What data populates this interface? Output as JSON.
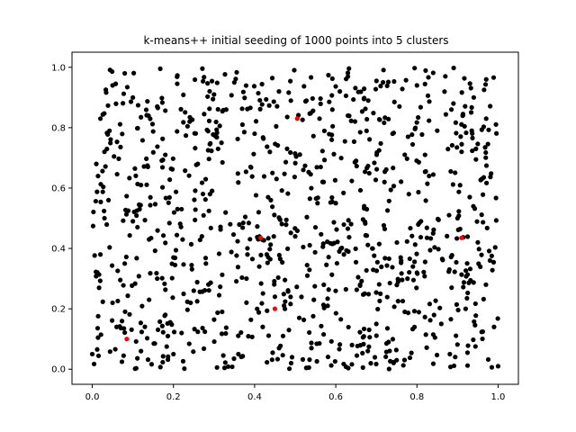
{
  "chart_data": {
    "type": "scatter",
    "title": "k-means++ initial seeding of 1000 points into 5 clusters",
    "xlabel": "",
    "ylabel": "",
    "xlim": [
      -0.05,
      1.05
    ],
    "ylim": [
      -0.05,
      1.05
    ],
    "xticks": [
      "0.0",
      "0.2",
      "0.4",
      "0.6",
      "0.8",
      "1.0"
    ],
    "yticks": [
      "0.0",
      "0.2",
      "0.4",
      "0.6",
      "0.8",
      "1.0"
    ],
    "grid": false,
    "series": [
      {
        "color": "#000000",
        "count": 1000,
        "points": [
          [
            0.0,
            0.05
          ],
          [
            0.05,
            0.22
          ],
          [
            0.02,
            0.38
          ],
          [
            0.03,
            0.72
          ],
          [
            0.05,
            0.94
          ],
          [
            0.08,
            0.98
          ],
          [
            0.1,
            0.9
          ],
          [
            0.12,
            0.61
          ],
          [
            0.14,
            0.43
          ],
          [
            0.16,
            0.3
          ],
          [
            0.18,
            0.18
          ],
          [
            0.2,
            0.05
          ],
          [
            0.22,
            0.12
          ],
          [
            0.25,
            0.26
          ],
          [
            0.27,
            0.44
          ],
          [
            0.29,
            0.58
          ],
          [
            0.31,
            0.73
          ],
          [
            0.33,
            0.86
          ],
          [
            0.35,
            0.95
          ],
          [
            0.37,
            0.81
          ],
          [
            0.39,
            0.67
          ],
          [
            0.41,
            0.52
          ],
          [
            0.43,
            0.38
          ],
          [
            0.45,
            0.24
          ],
          [
            0.47,
            0.11
          ],
          [
            0.49,
            0.02
          ],
          [
            0.51,
            0.17
          ],
          [
            0.53,
            0.31
          ],
          [
            0.55,
            0.47
          ],
          [
            0.57,
            0.62
          ],
          [
            0.59,
            0.76
          ],
          [
            0.61,
            0.92
          ],
          [
            0.63,
            0.84
          ],
          [
            0.65,
            0.69
          ],
          [
            0.67,
            0.54
          ],
          [
            0.69,
            0.4
          ],
          [
            0.71,
            0.25
          ],
          [
            0.73,
            0.09
          ],
          [
            0.75,
            0.03
          ],
          [
            0.77,
            0.19
          ],
          [
            0.79,
            0.34
          ],
          [
            0.81,
            0.49
          ],
          [
            0.83,
            0.64
          ],
          [
            0.85,
            0.79
          ],
          [
            0.87,
            0.97
          ],
          [
            0.89,
            0.88
          ],
          [
            0.91,
            0.72
          ],
          [
            0.93,
            0.57
          ],
          [
            0.95,
            0.42
          ],
          [
            0.97,
            0.28
          ],
          [
            0.99,
            0.14
          ],
          [
            1.0,
            0.01
          ],
          [
            0.98,
            0.36
          ],
          [
            0.96,
            0.63
          ],
          [
            0.94,
            0.9
          ],
          [
            0.92,
            0.2
          ],
          [
            0.9,
            0.5
          ],
          [
            0.88,
            0.33
          ],
          [
            0.86,
            0.15
          ],
          [
            0.84,
            0.45
          ],
          [
            0.82,
            0.71
          ],
          [
            0.8,
            0.94
          ],
          [
            0.78,
            0.58
          ],
          [
            0.76,
            0.37
          ],
          [
            0.74,
            0.78
          ],
          [
            0.72,
            0.62
          ],
          [
            0.7,
            0.15
          ],
          [
            0.68,
            0.89
          ],
          [
            0.66,
            0.28
          ],
          [
            0.64,
            0.08
          ],
          [
            0.62,
            0.38
          ],
          [
            0.6,
            0.55
          ],
          [
            0.58,
            0.21
          ],
          [
            0.56,
            0.83
          ],
          [
            0.54,
            0.07
          ],
          [
            0.52,
            0.66
          ],
          [
            0.5,
            0.44
          ],
          [
            0.48,
            0.73
          ],
          [
            0.46,
            0.92
          ],
          [
            0.44,
            0.56
          ],
          [
            0.42,
            0.14
          ],
          [
            0.4,
            0.78
          ],
          [
            0.38,
            0.3
          ],
          [
            0.36,
            0.05
          ],
          [
            0.34,
            0.48
          ],
          [
            0.32,
            0.19
          ],
          [
            0.3,
            0.91
          ],
          [
            0.28,
            0.35
          ],
          [
            0.26,
            0.68
          ],
          [
            0.24,
            0.82
          ],
          [
            0.22,
            0.53
          ],
          [
            0.2,
            0.37
          ],
          [
            0.18,
            0.71
          ],
          [
            0.16,
            0.87
          ],
          [
            0.14,
            0.23
          ],
          [
            0.12,
            0.06
          ],
          [
            0.1,
            0.49
          ],
          [
            0.08,
            0.35
          ],
          [
            0.06,
            0.14
          ],
          [
            0.04,
            0.56
          ],
          [
            0.02,
            0.83
          ],
          [
            0.01,
            0.68
          ]
        ]
      },
      {
        "name": "",
        "color": "#ff0000",
        "points": [
          [
            0.085,
            0.1
          ],
          [
            0.415,
            0.435
          ],
          [
            0.45,
            0.2
          ],
          [
            0.505,
            0.83
          ],
          [
            0.91,
            0.435
          ]
        ]
      }
    ]
  }
}
